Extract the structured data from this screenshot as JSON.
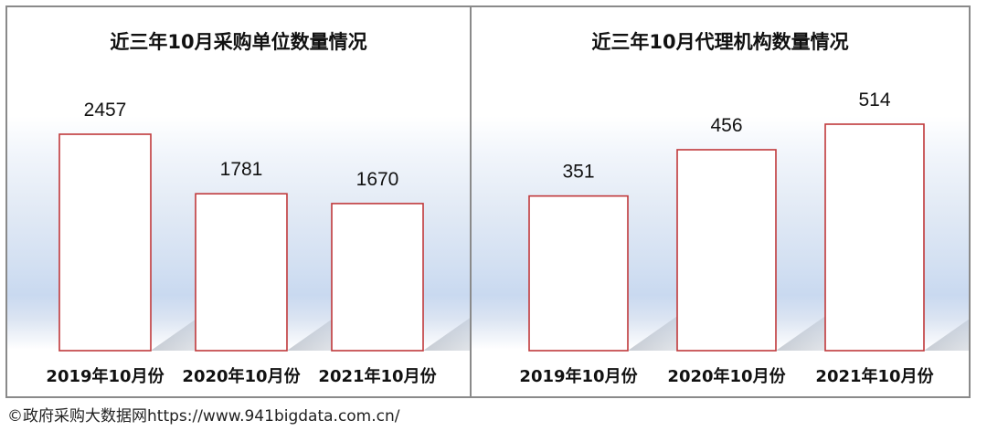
{
  "chart_data": [
    {
      "type": "bar",
      "title": "近三年10月采购单位数量情况",
      "categories": [
        "2019年10月份",
        "2020年10月份",
        "2021年10月份"
      ],
      "values": [
        2457,
        1781,
        1670
      ],
      "bar_color": "#c0393b"
    },
    {
      "type": "bar",
      "title": "近三年10月代理机构数量情况",
      "categories": [
        "2019年10月份",
        "2020年10月份",
        "2021年10月份"
      ],
      "values": [
        351,
        456,
        514
      ],
      "bar_color": "#c0393b"
    }
  ],
  "footer": {
    "text": "©政府采购大数据网https://www.941bigdata.com.cn/"
  }
}
